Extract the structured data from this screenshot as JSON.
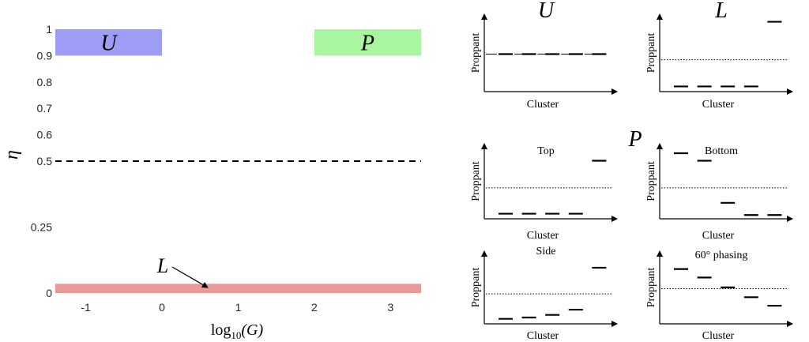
{
  "chart_data": [
    {
      "type": "area",
      "xlabel": "log10(G)",
      "xlabel_base": "log",
      "xlabel_sub": "10",
      "xlabel_arg": "(G)",
      "ylabel": "η",
      "xlim": [
        -1.4,
        3.4
      ],
      "ylim": [
        0,
        1
      ],
      "xticks": [
        -1,
        0,
        1,
        2,
        3
      ],
      "xtick_labels": [
        "-1",
        "0",
        "1",
        "2",
        "3"
      ],
      "yticks": [
        0,
        0.25,
        0.5,
        0.6,
        0.7,
        0.8,
        0.9,
        1
      ],
      "ytick_labels": [
        "0",
        "0.25",
        "0.5",
        "0.6",
        "0.7",
        "0.8",
        "0.9",
        "1"
      ],
      "regions": [
        {
          "label": "U",
          "x": [
            -1.4,
            0
          ],
          "y": [
            0.9,
            1.0
          ],
          "color": "#9d9df5"
        },
        {
          "label": "P",
          "x": [
            2,
            3.4
          ],
          "y": [
            0.9,
            1.0
          ],
          "color": "#a9f5a0"
        },
        {
          "label": "L",
          "x": [
            -1.4,
            3.4
          ],
          "y": [
            0,
            0.035
          ],
          "color": "#e8999a"
        }
      ],
      "reference_line": {
        "y": 0.5,
        "style": "dashed"
      },
      "annotation": {
        "text": "L"
      }
    },
    {
      "panel": "U",
      "title": "U",
      "type": "line",
      "xlabel": "Cluster",
      "ylabel": "Proppant",
      "values": [
        0.5,
        0.5,
        0.5,
        0.5,
        0.5
      ],
      "reference": 0.5,
      "reference_style": "dashdot"
    },
    {
      "panel": "L",
      "title": "L",
      "type": "line",
      "xlabel": "Cluster",
      "ylabel": "Proppant",
      "values": [
        0.04,
        0.04,
        0.04,
        0.04,
        0.96
      ],
      "reference": 0.42
    },
    {
      "panel": "P-top",
      "title": "Top",
      "type": "line",
      "xlabel": "Cluster",
      "ylabel": "Proppant",
      "values": [
        0.04,
        0.04,
        0.04,
        0.04,
        0.82
      ],
      "reference": 0.42
    },
    {
      "panel": "P-bottom",
      "title": "Bottom",
      "type": "line",
      "xlabel": "Cluster",
      "ylabel": "Proppant",
      "values": [
        0.93,
        0.82,
        0.2,
        0.02,
        0.02
      ],
      "reference": 0.42
    },
    {
      "panel": "P-side",
      "title": "Side",
      "type": "line",
      "xlabel": "Cluster",
      "ylabel": "Proppant",
      "values": [
        0.04,
        0.06,
        0.1,
        0.18,
        0.82
      ],
      "reference": 0.42
    },
    {
      "panel": "P-phasing",
      "title": "60° phasing",
      "type": "line",
      "xlabel": "Cluster",
      "ylabel": "Proppant",
      "values": [
        0.8,
        0.67,
        0.52,
        0.37,
        0.24
      ],
      "reference": 0.5
    }
  ],
  "group_label": "P"
}
